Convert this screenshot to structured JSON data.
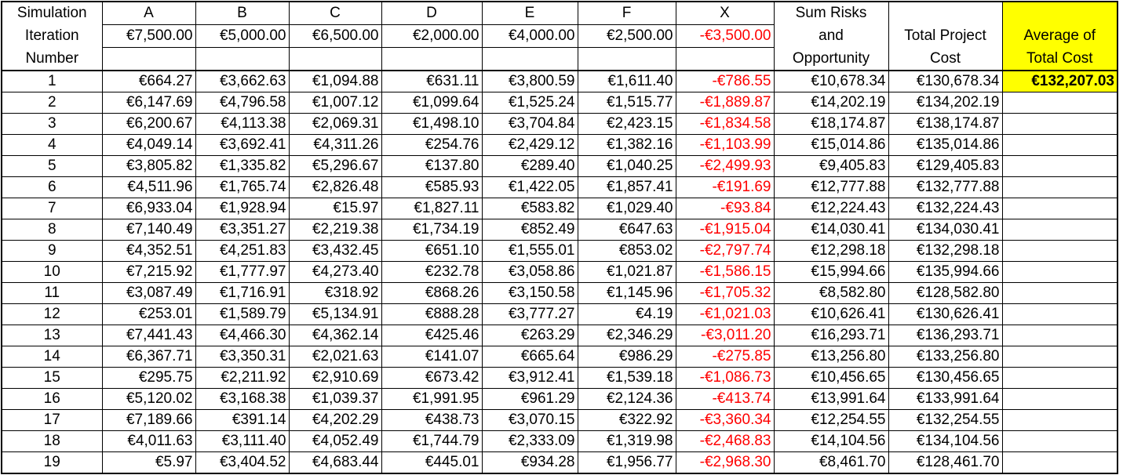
{
  "header": {
    "col0": [
      "Simulation",
      "Iteration",
      "Number"
    ],
    "letters": [
      "A",
      "B",
      "C",
      "D",
      "E",
      "F",
      "X"
    ],
    "base_values": [
      "€7,500.00",
      "€5,000.00",
      "€6,500.00",
      "€2,000.00",
      "€4,000.00",
      "€2,500.00",
      "-€3,500.00"
    ],
    "sum_risks": [
      "Sum Risks",
      "and",
      "Opportunity"
    ],
    "total_project": [
      "",
      "Total Project",
      "Cost"
    ],
    "average": [
      "",
      "Average of",
      "Total Cost"
    ]
  },
  "average_value": "€132,207.03",
  "rows": [
    [
      "1",
      "€664.27",
      "€3,662.63",
      "€1,094.88",
      "€631.11",
      "€3,800.59",
      "€1,611.40",
      "-€786.55",
      "€10,678.34",
      "€130,678.34"
    ],
    [
      "2",
      "€6,147.69",
      "€4,796.58",
      "€1,007.12",
      "€1,099.64",
      "€1,525.24",
      "€1,515.77",
      "-€1,889.87",
      "€14,202.19",
      "€134,202.19"
    ],
    [
      "3",
      "€6,200.67",
      "€4,113.38",
      "€2,069.31",
      "€1,498.10",
      "€3,704.84",
      "€2,423.15",
      "-€1,834.58",
      "€18,174.87",
      "€138,174.87"
    ],
    [
      "4",
      "€4,049.14",
      "€3,692.41",
      "€4,311.26",
      "€254.76",
      "€2,429.12",
      "€1,382.16",
      "-€1,103.99",
      "€15,014.86",
      "€135,014.86"
    ],
    [
      "5",
      "€3,805.82",
      "€1,335.82",
      "€5,296.67",
      "€137.80",
      "€289.40",
      "€1,040.25",
      "-€2,499.93",
      "€9,405.83",
      "€129,405.83"
    ],
    [
      "6",
      "€4,511.96",
      "€1,765.74",
      "€2,826.48",
      "€585.93",
      "€1,422.05",
      "€1,857.41",
      "-€191.69",
      "€12,777.88",
      "€132,777.88"
    ],
    [
      "7",
      "€6,933.04",
      "€1,928.94",
      "€15.97",
      "€1,827.11",
      "€583.82",
      "€1,029.40",
      "-€93.84",
      "€12,224.43",
      "€132,224.43"
    ],
    [
      "8",
      "€7,140.49",
      "€3,351.27",
      "€2,219.38",
      "€1,734.19",
      "€852.49",
      "€647.63",
      "-€1,915.04",
      "€14,030.41",
      "€134,030.41"
    ],
    [
      "9",
      "€4,352.51",
      "€4,251.83",
      "€3,432.45",
      "€651.10",
      "€1,555.01",
      "€853.02",
      "-€2,797.74",
      "€12,298.18",
      "€132,298.18"
    ],
    [
      "10",
      "€7,215.92",
      "€1,777.97",
      "€4,273.40",
      "€232.78",
      "€3,058.86",
      "€1,021.87",
      "-€1,586.15",
      "€15,994.66",
      "€135,994.66"
    ],
    [
      "11",
      "€3,087.49",
      "€1,716.91",
      "€318.92",
      "€868.26",
      "€3,150.58",
      "€1,145.96",
      "-€1,705.32",
      "€8,582.80",
      "€128,582.80"
    ],
    [
      "12",
      "€253.01",
      "€1,589.79",
      "€5,134.91",
      "€888.28",
      "€3,777.27",
      "€4.19",
      "-€1,021.03",
      "€10,626.41",
      "€130,626.41"
    ],
    [
      "13",
      "€7,441.43",
      "€4,466.30",
      "€4,362.14",
      "€425.46",
      "€263.29",
      "€2,346.29",
      "-€3,011.20",
      "€16,293.71",
      "€136,293.71"
    ],
    [
      "14",
      "€6,367.71",
      "€3,350.31",
      "€2,021.63",
      "€141.07",
      "€665.64",
      "€986.29",
      "-€275.85",
      "€13,256.80",
      "€133,256.80"
    ],
    [
      "15",
      "€295.75",
      "€2,211.92",
      "€2,910.69",
      "€673.42",
      "€3,912.41",
      "€1,539.18",
      "-€1,086.73",
      "€10,456.65",
      "€130,456.65"
    ],
    [
      "16",
      "€5,120.02",
      "€3,168.38",
      "€1,039.37",
      "€1,991.95",
      "€961.29",
      "€2,124.36",
      "-€413.74",
      "€13,991.64",
      "€133,991.64"
    ],
    [
      "17",
      "€7,189.66",
      "€391.14",
      "€4,202.29",
      "€438.73",
      "€3,070.15",
      "€322.92",
      "-€3,360.34",
      "€12,254.55",
      "€132,254.55"
    ],
    [
      "18",
      "€4,011.63",
      "€3,111.40",
      "€4,052.49",
      "€1,744.79",
      "€2,333.09",
      "€1,319.98",
      "-€2,468.83",
      "€14,104.56",
      "€134,104.56"
    ],
    [
      "19",
      "€5.97",
      "€3,404.52",
      "€4,683.44",
      "€445.01",
      "€934.28",
      "€1,956.77",
      "-€2,968.30",
      "€8,461.70",
      "€128,461.70"
    ]
  ],
  "colors": {
    "negative": "#ff0000",
    "highlight": "#ffff00"
  }
}
